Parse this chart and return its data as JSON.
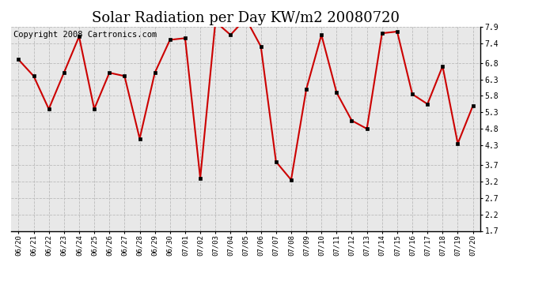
{
  "title": "Solar Radiation per Day KW/m2 20080720",
  "copyright": "Copyright 2008 Cartronics.com",
  "dates": [
    "06/20",
    "06/21",
    "06/22",
    "06/23",
    "06/24",
    "06/25",
    "06/26",
    "06/27",
    "06/28",
    "06/29",
    "06/30",
    "07/01",
    "07/02",
    "07/03",
    "07/04",
    "07/05",
    "07/06",
    "07/07",
    "07/08",
    "07/09",
    "07/10",
    "07/11",
    "07/12",
    "07/13",
    "07/14",
    "07/15",
    "07/16",
    "07/17",
    "07/18",
    "07/19",
    "07/20"
  ],
  "values": [
    6.9,
    6.4,
    5.4,
    6.5,
    7.6,
    5.4,
    6.5,
    6.4,
    4.5,
    6.5,
    7.5,
    7.55,
    3.3,
    8.05,
    7.65,
    8.15,
    7.3,
    3.8,
    3.25,
    6.0,
    7.65,
    5.9,
    5.05,
    4.8,
    7.7,
    7.75,
    5.85,
    5.55,
    6.7,
    4.35,
    5.5
  ],
  "ylim_min": 1.7,
  "ylim_max": 7.9,
  "yticks": [
    1.7,
    2.2,
    2.7,
    3.2,
    3.7,
    4.3,
    4.8,
    5.3,
    5.8,
    6.3,
    6.8,
    7.4,
    7.9
  ],
  "line_color": "#cc0000",
  "marker_color": "#000000",
  "bg_color": "#ffffff",
  "plot_bg_color": "#e8e8e8",
  "grid_color": "#bbbbbb",
  "title_fontsize": 13,
  "copyright_fontsize": 7.5
}
